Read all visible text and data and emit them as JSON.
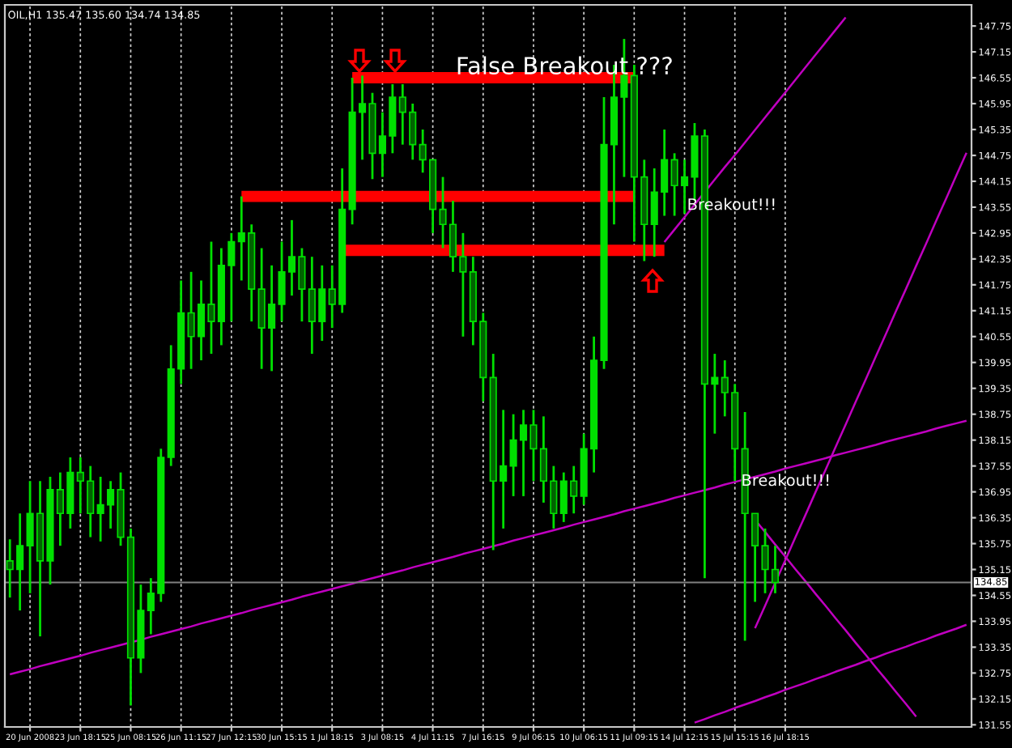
{
  "chart_data": {
    "type": "candlestick",
    "title": "OIL,H1 135.47 135.60 134.74 134.85",
    "color": "#00e000",
    "grid": "x",
    "categories": [
      null,
      null,
      "20 Jun 2008",
      null,
      null,
      null,
      null,
      "23 Jun 18:15",
      null,
      null,
      null,
      null,
      "25 Jun 08:15",
      null,
      null,
      null,
      null,
      "26 Jun 11:15",
      null,
      null,
      null,
      null,
      "27 Jun 12:15",
      null,
      null,
      null,
      null,
      "30 Jun 15:15",
      null,
      null,
      null,
      null,
      "1 Jul 18:15",
      null,
      null,
      null,
      null,
      "3 Jul 08:15",
      null,
      null,
      null,
      null,
      "4 Jul 11:15",
      null,
      null,
      null,
      null,
      "7 Jul 16:15",
      null,
      null,
      null,
      null,
      "9 Jul 06:15",
      null,
      null,
      null,
      null,
      "10 Jul 06:15",
      null,
      null,
      null,
      null,
      "11 Jul 09:15",
      null,
      null,
      null,
      null,
      "14 Jul 12:15",
      null,
      null,
      null,
      null,
      "15 Jul 15:15",
      null,
      null,
      null,
      null,
      "16 Jul 18:15",
      null,
      null,
      null,
      null,
      null,
      null,
      null,
      null,
      null,
      null,
      null,
      null,
      null,
      null,
      null,
      null,
      null,
      null
    ],
    "ohlc": [
      [
        135.35,
        135.85,
        134.5,
        135.15
      ],
      [
        135.15,
        136.45,
        134.2,
        135.7
      ],
      [
        135.7,
        137.2,
        134.6,
        136.45
      ],
      [
        136.45,
        137.2,
        133.6,
        135.35
      ],
      [
        135.35,
        137.3,
        134.8,
        137.0
      ],
      [
        137.0,
        137.4,
        135.7,
        136.45
      ],
      [
        136.45,
        137.75,
        136.1,
        137.4
      ],
      [
        137.4,
        137.75,
        136.45,
        137.2
      ],
      [
        137.2,
        137.55,
        135.9,
        136.45
      ],
      [
        136.45,
        137.3,
        135.8,
        136.65
      ],
      [
        136.65,
        137.2,
        136.1,
        137.0
      ],
      [
        137.0,
        137.4,
        135.7,
        135.9
      ],
      [
        135.9,
        136.1,
        132.0,
        133.1
      ],
      [
        133.1,
        134.8,
        132.75,
        134.2
      ],
      [
        134.2,
        134.95,
        133.65,
        134.6
      ],
      [
        134.6,
        137.95,
        134.4,
        137.75
      ],
      [
        137.75,
        140.35,
        137.55,
        139.8
      ],
      [
        139.8,
        141.85,
        139.45,
        141.1
      ],
      [
        141.1,
        142.05,
        139.8,
        140.55
      ],
      [
        140.55,
        141.85,
        140.0,
        141.3
      ],
      [
        141.3,
        142.75,
        140.15,
        140.9
      ],
      [
        140.9,
        142.6,
        140.35,
        142.2
      ],
      [
        142.2,
        142.95,
        140.9,
        142.75
      ],
      [
        142.75,
        143.8,
        141.85,
        142.95
      ],
      [
        142.95,
        143.15,
        140.9,
        141.65
      ],
      [
        141.65,
        142.6,
        139.8,
        140.75
      ],
      [
        140.75,
        142.2,
        139.75,
        141.3
      ],
      [
        141.3,
        142.75,
        140.9,
        142.05
      ],
      [
        142.05,
        143.25,
        141.5,
        142.4
      ],
      [
        142.4,
        142.6,
        140.9,
        141.65
      ],
      [
        141.65,
        142.4,
        140.15,
        140.9
      ],
      [
        140.9,
        142.2,
        140.45,
        141.65
      ],
      [
        141.65,
        142.2,
        140.75,
        141.3
      ],
      [
        141.3,
        144.45,
        141.1,
        143.5
      ],
      [
        143.5,
        146.55,
        143.15,
        145.75
      ],
      [
        145.75,
        146.6,
        144.65,
        145.95
      ],
      [
        145.95,
        146.2,
        144.2,
        144.8
      ],
      [
        144.8,
        145.75,
        144.25,
        145.2
      ],
      [
        145.2,
        146.4,
        144.8,
        146.1
      ],
      [
        146.1,
        146.4,
        145.0,
        145.75
      ],
      [
        145.75,
        145.95,
        144.65,
        145.0
      ],
      [
        145.0,
        145.35,
        144.35,
        144.65
      ],
      [
        144.65,
        144.65,
        142.95,
        143.5
      ],
      [
        143.5,
        144.25,
        142.6,
        143.15
      ],
      [
        143.15,
        143.7,
        142.05,
        142.4
      ],
      [
        142.4,
        142.95,
        140.55,
        142.05
      ],
      [
        142.05,
        142.4,
        140.35,
        140.9
      ],
      [
        140.9,
        141.1,
        139.05,
        139.6
      ],
      [
        139.6,
        140.15,
        135.6,
        137.2
      ],
      [
        137.2,
        138.85,
        136.1,
        137.55
      ],
      [
        137.55,
        138.75,
        136.85,
        138.15
      ],
      [
        138.15,
        138.85,
        136.85,
        138.5
      ],
      [
        138.5,
        138.85,
        137.2,
        137.95
      ],
      [
        137.95,
        138.7,
        136.7,
        137.2
      ],
      [
        137.2,
        137.55,
        136.1,
        136.45
      ],
      [
        136.45,
        137.4,
        136.25,
        137.2
      ],
      [
        137.2,
        137.55,
        136.45,
        136.85
      ],
      [
        136.85,
        138.3,
        136.65,
        137.95
      ],
      [
        137.95,
        140.55,
        137.4,
        140.0
      ],
      [
        140.0,
        146.1,
        139.8,
        145.0
      ],
      [
        145.0,
        146.85,
        143.15,
        146.1
      ],
      [
        146.1,
        147.45,
        144.25,
        146.6
      ],
      [
        146.6,
        146.85,
        142.75,
        144.25
      ],
      [
        144.25,
        144.65,
        142.3,
        143.15
      ],
      [
        143.15,
        144.45,
        142.4,
        143.9
      ],
      [
        143.9,
        145.35,
        143.35,
        144.65
      ],
      [
        144.65,
        144.8,
        143.35,
        144.05
      ],
      [
        144.05,
        144.65,
        143.4,
        144.25
      ],
      [
        144.25,
        145.5,
        143.7,
        145.2
      ],
      [
        145.2,
        145.35,
        134.95,
        139.45
      ],
      [
        139.45,
        140.15,
        138.3,
        139.6
      ],
      [
        139.6,
        140.0,
        138.7,
        139.25
      ],
      [
        139.25,
        139.45,
        137.2,
        137.95
      ],
      [
        137.95,
        138.8,
        133.5,
        136.45
      ],
      [
        136.45,
        136.45,
        134.4,
        135.7
      ],
      [
        135.7,
        136.1,
        134.6,
        135.15
      ],
      [
        135.15,
        135.7,
        134.6,
        134.85
      ],
      null,
      null,
      null,
      null,
      null,
      null,
      null,
      null,
      null,
      null,
      null,
      null,
      null,
      null,
      null,
      null,
      null,
      null,
      null
    ],
    "series": [
      {
        "type": "line",
        "color": "#ff0000",
        "values": [
          null,
          null,
          null,
          null,
          null,
          null,
          null,
          null,
          null,
          null,
          null,
          null,
          null,
          null,
          null,
          null,
          null,
          null,
          null,
          null,
          null,
          null,
          null,
          143.8,
          143.8,
          143.8,
          143.8,
          143.8,
          143.8,
          143.8,
          143.8,
          143.8,
          143.8,
          143.8,
          143.8,
          143.8,
          143.8,
          143.8,
          143.8,
          143.8,
          143.8,
          143.8,
          143.8,
          143.8,
          143.8,
          143.8,
          143.8,
          143.8,
          143.8,
          143.8,
          143.8,
          143.8,
          143.8,
          143.8,
          143.8,
          143.8,
          143.8,
          143.8,
          143.8,
          143.8,
          143.8,
          143.8,
          143.8,
          null,
          null,
          null,
          null,
          null,
          null,
          null,
          null,
          null,
          null,
          null,
          null,
          null,
          null,
          null,
          null,
          null,
          null,
          null,
          null,
          null,
          null,
          null,
          null,
          null,
          null,
          null,
          null,
          null,
          null,
          null,
          null,
          null
        ]
      },
      {
        "type": "line",
        "color": "#ff0000",
        "values": [
          null,
          null,
          null,
          null,
          null,
          null,
          null,
          null,
          null,
          null,
          null,
          null,
          null,
          null,
          null,
          null,
          null,
          null,
          null,
          null,
          null,
          null,
          null,
          null,
          null,
          null,
          null,
          null,
          null,
          null,
          null,
          null,
          null,
          null,
          146.55,
          146.55,
          146.55,
          146.55,
          146.55,
          146.55,
          146.55,
          146.55,
          146.55,
          146.55,
          146.55,
          146.55,
          146.55,
          146.55,
          146.55,
          146.55,
          146.55,
          146.55,
          146.55,
          146.55,
          146.55,
          146.55,
          146.55,
          146.55,
          146.55,
          146.55,
          146.55,
          146.55,
          146.55,
          null,
          null,
          null,
          null,
          null,
          null,
          null,
          null,
          null,
          null,
          null,
          null,
          null,
          null,
          null,
          null,
          null,
          null,
          null,
          null,
          null,
          null,
          null,
          null,
          null,
          null,
          null,
          null,
          null,
          null,
          null,
          null,
          null
        ]
      },
      {
        "type": "line",
        "color": "#ff0000",
        "values": [
          null,
          null,
          null,
          null,
          null,
          null,
          null,
          null,
          null,
          null,
          null,
          null,
          null,
          null,
          null,
          null,
          null,
          null,
          null,
          null,
          null,
          null,
          null,
          null,
          null,
          null,
          null,
          null,
          null,
          null,
          null,
          null,
          null,
          142.55,
          142.55,
          142.55,
          142.55,
          142.55,
          142.55,
          142.55,
          142.55,
          142.55,
          142.55,
          142.55,
          142.55,
          142.55,
          142.55,
          142.55,
          142.55,
          142.55,
          142.55,
          142.55,
          142.55,
          142.55,
          142.55,
          142.55,
          142.55,
          142.55,
          142.55,
          142.55,
          142.55,
          142.55,
          142.55,
          142.55,
          142.55,
          142.55,
          null,
          null,
          null,
          null,
          null,
          null,
          null,
          null,
          null,
          null,
          null,
          null,
          null,
          null,
          null,
          null,
          null,
          null,
          null,
          null,
          null,
          null,
          null,
          null,
          null,
          null,
          null,
          null,
          null,
          null
        ]
      },
      {
        "type": "line",
        "color": "#c000c0",
        "values": [
          132.72,
          132.78,
          132.84,
          132.91,
          132.97,
          133.03,
          133.09,
          133.15,
          133.22,
          133.28,
          133.34,
          133.4,
          133.46,
          133.52,
          133.59,
          133.65,
          133.71,
          133.77,
          133.83,
          133.9,
          133.96,
          134.02,
          134.08,
          134.14,
          134.21,
          134.27,
          134.33,
          134.39,
          134.45,
          134.52,
          134.58,
          134.64,
          134.7,
          134.76,
          134.82,
          134.89,
          134.95,
          135.01,
          135.07,
          135.13,
          135.2,
          135.26,
          135.32,
          135.38,
          135.44,
          135.51,
          135.57,
          135.63,
          135.69,
          135.75,
          135.82,
          135.88,
          135.94,
          136.0,
          136.06,
          136.12,
          136.19,
          136.25,
          136.31,
          136.37,
          136.43,
          136.5,
          136.56,
          136.62,
          136.68,
          136.74,
          136.81,
          136.87,
          136.93,
          136.99,
          137.05,
          137.12,
          137.18,
          137.24,
          137.3,
          137.36,
          137.42,
          137.49,
          137.55,
          137.61,
          137.67,
          137.73,
          137.8,
          137.86,
          137.92,
          137.98,
          138.04,
          138.11,
          138.17,
          138.23,
          138.29,
          138.35,
          138.42,
          138.48,
          138.54,
          138.6
        ]
      },
      {
        "type": "line",
        "color": "#c000c0",
        "values": [
          null,
          null,
          null,
          null,
          null,
          null,
          null,
          null,
          null,
          null,
          null,
          null,
          null,
          null,
          null,
          null,
          null,
          null,
          null,
          null,
          null,
          null,
          null,
          null,
          null,
          null,
          null,
          null,
          null,
          null,
          null,
          null,
          null,
          null,
          null,
          null,
          null,
          null,
          null,
          null,
          null,
          null,
          null,
          null,
          null,
          null,
          null,
          null,
          null,
          null,
          null,
          null,
          null,
          null,
          null,
          null,
          null,
          null,
          null,
          null,
          null,
          null,
          null,
          null,
          null,
          null,
          null,
          null,
          131.6,
          131.68,
          131.77,
          131.85,
          131.94,
          132.02,
          132.1,
          132.19,
          132.27,
          132.36,
          132.44,
          132.52,
          132.61,
          132.69,
          132.78,
          132.86,
          132.94,
          133.03,
          133.11,
          133.2,
          133.28,
          133.36,
          133.45,
          133.53,
          133.62,
          133.7,
          133.78,
          133.87
        ]
      },
      {
        "type": "line",
        "color": "#c000c0",
        "values": [
          null,
          null,
          null,
          null,
          null,
          null,
          null,
          null,
          null,
          null,
          null,
          null,
          null,
          null,
          null,
          null,
          null,
          null,
          null,
          null,
          null,
          null,
          null,
          null,
          null,
          null,
          null,
          null,
          null,
          null,
          null,
          null,
          null,
          null,
          null,
          null,
          null,
          null,
          null,
          null,
          null,
          null,
          null,
          null,
          null,
          null,
          null,
          null,
          null,
          null,
          null,
          null,
          null,
          null,
          null,
          null,
          null,
          null,
          null,
          null,
          null,
          null,
          null,
          null,
          null,
          142.74,
          143.03,
          143.32,
          143.61,
          143.9,
          144.19,
          144.48,
          144.76,
          145.05,
          145.34,
          145.63,
          145.92,
          146.21,
          146.5,
          146.79,
          147.08,
          147.37,
          147.66,
          147.95,
          null,
          null,
          null,
          null,
          null,
          null,
          null,
          null,
          null,
          null,
          null,
          null
        ]
      },
      {
        "type": "line",
        "color": "#c000c0",
        "values": [
          null,
          null,
          null,
          null,
          null,
          null,
          null,
          null,
          null,
          null,
          null,
          null,
          null,
          null,
          null,
          null,
          null,
          null,
          null,
          null,
          null,
          null,
          null,
          null,
          null,
          null,
          null,
          null,
          null,
          null,
          null,
          null,
          null,
          null,
          null,
          null,
          null,
          null,
          null,
          null,
          null,
          null,
          null,
          null,
          null,
          null,
          null,
          null,
          null,
          null,
          null,
          null,
          null,
          null,
          null,
          null,
          null,
          null,
          null,
          null,
          null,
          null,
          null,
          null,
          null,
          null,
          null,
          null,
          null,
          null,
          null,
          null,
          null,
          null,
          133.79,
          134.31,
          134.84,
          135.36,
          135.89,
          136.41,
          136.94,
          137.46,
          137.99,
          138.51,
          139.04,
          139.56,
          140.09,
          140.61,
          141.14,
          141.66,
          142.19,
          142.71,
          143.24,
          143.76,
          144.29,
          144.81
        ]
      },
      {
        "type": "line",
        "color": "#c000c0",
        "values": [
          null,
          null,
          null,
          null,
          null,
          null,
          null,
          null,
          null,
          null,
          null,
          null,
          null,
          null,
          null,
          null,
          null,
          null,
          null,
          null,
          null,
          null,
          null,
          null,
          null,
          null,
          null,
          null,
          null,
          null,
          null,
          null,
          null,
          null,
          null,
          null,
          null,
          null,
          null,
          null,
          null,
          null,
          null,
          null,
          null,
          null,
          null,
          null,
          null,
          null,
          null,
          null,
          null,
          null,
          null,
          null,
          null,
          null,
          null,
          null,
          null,
          null,
          null,
          null,
          null,
          null,
          null,
          null,
          null,
          null,
          null,
          null,
          null,
          null,
          136.3,
          136.02,
          135.73,
          135.45,
          135.16,
          134.88,
          134.59,
          134.31,
          134.02,
          133.74,
          133.45,
          133.17,
          132.88,
          132.6,
          132.31,
          132.03,
          131.74,
          null,
          null,
          null,
          null,
          null
        ]
      }
    ],
    "ylim": [
      131.5,
      148.24
    ],
    "yticks": [
      131.55,
      132.15,
      132.75,
      133.35,
      133.95,
      134.55,
      135.15,
      135.75,
      136.35,
      136.95,
      137.55,
      138.15,
      138.75,
      139.35,
      139.95,
      140.55,
      141.15,
      141.75,
      142.35,
      142.95,
      143.55,
      144.15,
      144.75,
      145.35,
      145.95,
      146.55,
      147.15,
      147.75
    ],
    "ref_lines": [
      {
        "axis": "y",
        "value": 134.85,
        "label": "134.85",
        "color": "#808080"
      }
    ],
    "annotations": [
      "False Breakout ???",
      "Breakout!!!",
      "Breakout!!!"
    ]
  }
}
